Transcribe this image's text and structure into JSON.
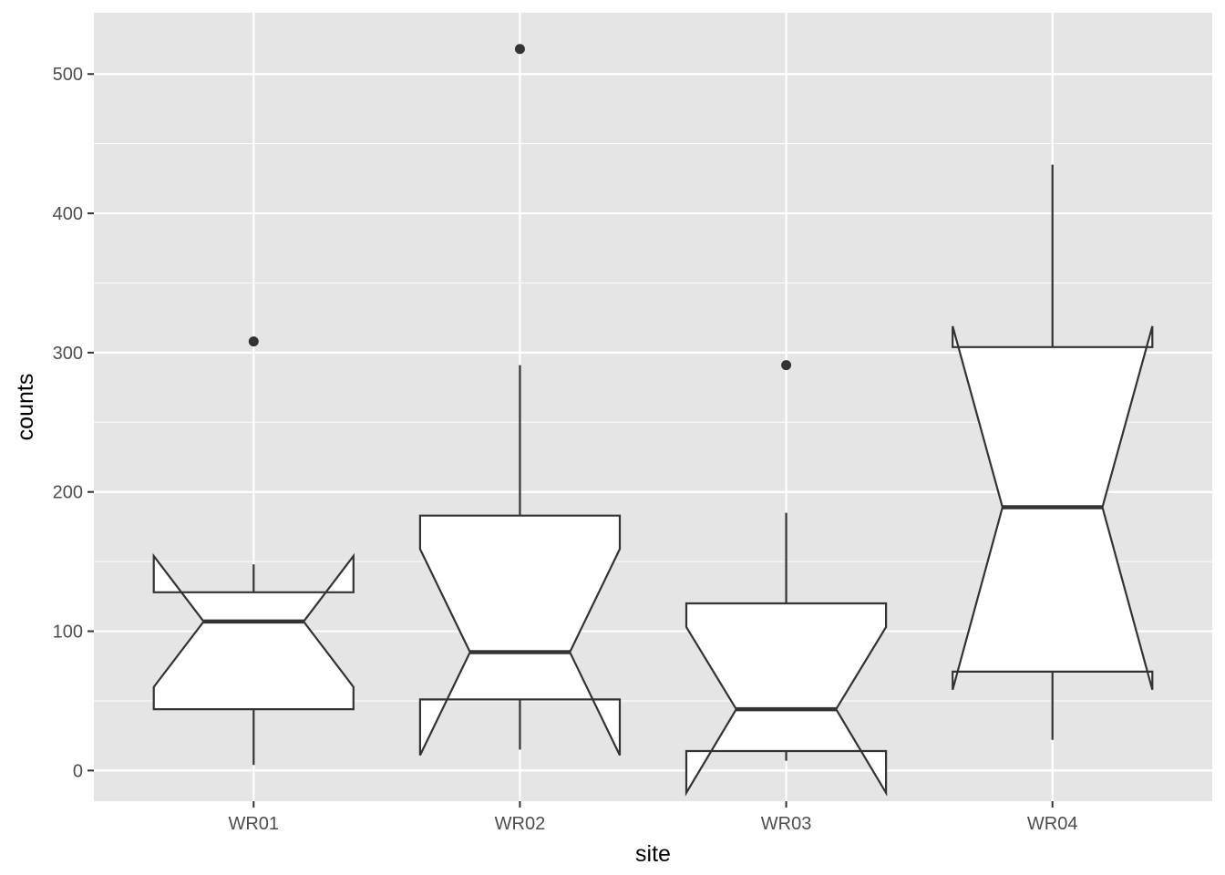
{
  "chart_data": {
    "type": "boxplot",
    "variant": "notched",
    "xlabel": "site",
    "ylabel": "counts",
    "categories": [
      "WR01",
      "WR02",
      "WR03",
      "WR04"
    ],
    "y_ticks": [
      0,
      100,
      200,
      300,
      400,
      500
    ],
    "ylim": [
      -22,
      544
    ],
    "grid": true,
    "legend": "none",
    "boxes": [
      {
        "category": "WR01",
        "whisker_low": 4,
        "q1": 44,
        "median": 107,
        "q3": 128,
        "whisker_high": 148,
        "notch_low": 60,
        "notch_high": 154,
        "outliers": [
          308
        ]
      },
      {
        "category": "WR02",
        "whisker_low": 15,
        "q1": 51,
        "median": 85,
        "q3": 183,
        "whisker_high": 291,
        "notch_low": 11,
        "notch_high": 159,
        "outliers": [
          518
        ]
      },
      {
        "category": "WR03",
        "whisker_low": 7,
        "q1": 14,
        "median": 44,
        "q3": 120,
        "whisker_high": 185,
        "notch_low": -16,
        "notch_high": 103,
        "outliers": [
          291
        ]
      },
      {
        "category": "WR04",
        "whisker_low": 22,
        "q1": 71,
        "median": 189,
        "q3": 304,
        "whisker_high": 435,
        "notch_low": 58,
        "notch_high": 319,
        "outliers": []
      }
    ],
    "colors": {
      "panel_background": "#e5e5e5",
      "grid_line": "#ffffff",
      "box_fill": "#ffffff",
      "box_stroke": "#333333",
      "outlier": "#333333",
      "tick_text": "#4d4d4d",
      "title_text": "#000000"
    }
  }
}
